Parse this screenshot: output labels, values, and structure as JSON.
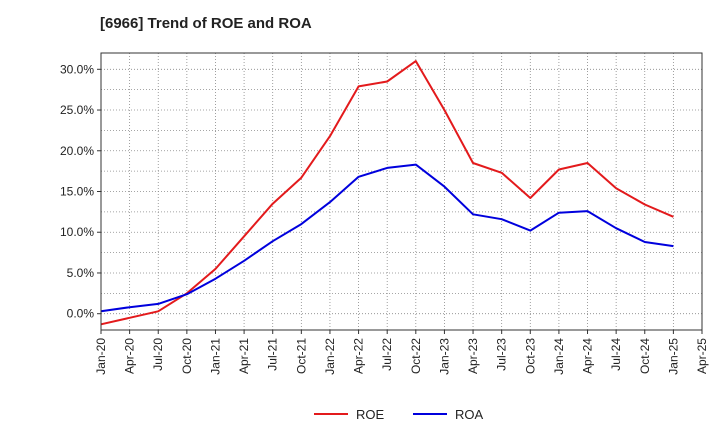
{
  "chart_data": {
    "type": "line",
    "title": "[6966]  Trend of ROE and ROA",
    "xlabel": "",
    "ylabel": "",
    "x": [
      "Jan-20",
      "Apr-20",
      "Jul-20",
      "Oct-20",
      "Jan-21",
      "Apr-21",
      "Jul-21",
      "Oct-21",
      "Jan-22",
      "Apr-22",
      "Jul-22",
      "Oct-22",
      "Jan-23",
      "Apr-23",
      "Jul-23",
      "Oct-23",
      "Jan-24",
      "Apr-24",
      "Jul-24",
      "Oct-24",
      "Jan-25"
    ],
    "x_ticks": [
      "Jan-20",
      "Apr-20",
      "Jul-20",
      "Oct-20",
      "Jan-21",
      "Apr-21",
      "Jul-21",
      "Oct-21",
      "Jan-22",
      "Apr-22",
      "Jul-22",
      "Oct-22",
      "Jan-23",
      "Apr-23",
      "Jul-23",
      "Oct-23",
      "Jan-24",
      "Apr-24",
      "Jul-24",
      "Oct-24",
      "Jan-25",
      "Apr-25"
    ],
    "y_ticks": [
      "0.0%",
      "5.0%",
      "10.0%",
      "15.0%",
      "20.0%",
      "25.0%",
      "30.0%"
    ],
    "ylim": [
      -2.0,
      32.0
    ],
    "grid": true,
    "legend": "bottom-center",
    "series": [
      {
        "name": "ROE",
        "color": "#e31a1c",
        "values": [
          -1.3,
          -0.5,
          0.3,
          2.5,
          5.5,
          9.5,
          13.5,
          16.7,
          21.8,
          27.9,
          28.5,
          31.0,
          25.0,
          18.5,
          17.3,
          14.2,
          17.7,
          18.5,
          15.4,
          13.4,
          11.9
        ]
      },
      {
        "name": "ROA",
        "color": "#0000dd",
        "values": [
          0.3,
          0.8,
          1.2,
          2.4,
          4.3,
          6.5,
          8.9,
          11.0,
          13.7,
          16.8,
          17.9,
          18.3,
          15.6,
          12.2,
          11.6,
          10.2,
          12.4,
          12.6,
          10.5,
          8.8,
          8.3
        ]
      }
    ]
  }
}
